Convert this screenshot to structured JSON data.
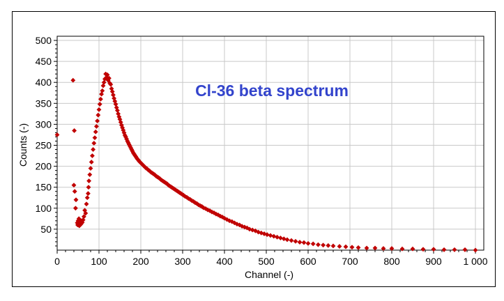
{
  "chart_data": {
    "type": "scatter",
    "title": "Cl-36 beta spectrum",
    "xlabel": "Channel (-)",
    "ylabel": "Counts (-)",
    "xlim": [
      0,
      1020
    ],
    "ylim": [
      0,
      510
    ],
    "xticks": [
      0,
      100,
      200,
      300,
      400,
      500,
      600,
      700,
      800,
      900,
      1000
    ],
    "xtick_labels": [
      "0",
      "100",
      "200",
      "300",
      "400",
      "500",
      "600",
      "700",
      "800",
      "900",
      "1 000"
    ],
    "yticks": [
      50,
      100,
      150,
      200,
      250,
      300,
      350,
      400,
      450,
      500
    ],
    "ytick_labels": [
      "50",
      "100",
      "150",
      "200",
      "250",
      "300",
      "350",
      "400",
      "450",
      "500"
    ],
    "grid": true,
    "marker": "diamond",
    "colors": {
      "marker": "#c00000",
      "title": "#3344cc",
      "grid": "#c8c8c8"
    },
    "series": [
      {
        "points": [
          [
            0,
            275
          ],
          [
            38,
            405
          ],
          [
            40,
            155
          ],
          [
            41,
            285
          ],
          [
            42,
            140
          ],
          [
            44,
            100
          ],
          [
            45,
            120
          ],
          [
            48,
            65
          ],
          [
            49,
            60
          ],
          [
            50,
            70
          ],
          [
            51,
            62
          ],
          [
            52,
            75
          ],
          [
            53,
            58
          ],
          [
            54,
            65
          ],
          [
            55,
            60
          ],
          [
            56,
            68
          ],
          [
            57,
            62
          ],
          [
            58,
            70
          ],
          [
            60,
            66
          ],
          [
            62,
            72
          ],
          [
            64,
            80
          ],
          [
            66,
            95
          ],
          [
            68,
            88
          ],
          [
            70,
            110
          ],
          [
            72,
            125
          ],
          [
            74,
            135
          ],
          [
            75,
            150
          ],
          [
            76,
            165
          ],
          [
            78,
            180
          ],
          [
            80,
            195
          ],
          [
            82,
            210
          ],
          [
            84,
            225
          ],
          [
            86,
            240
          ],
          [
            88,
            255
          ],
          [
            90,
            268
          ],
          [
            92,
            282
          ],
          [
            94,
            295
          ],
          [
            96,
            308
          ],
          [
            98,
            322
          ],
          [
            100,
            335
          ],
          [
            102,
            348
          ],
          [
            104,
            360
          ],
          [
            106,
            372
          ],
          [
            108,
            380
          ],
          [
            110,
            392
          ],
          [
            112,
            400
          ],
          [
            114,
            408
          ],
          [
            116,
            420
          ],
          [
            118,
            412
          ],
          [
            120,
            418
          ],
          [
            122,
            405
          ],
          [
            124,
            410
          ],
          [
            126,
            398
          ],
          [
            128,
            395
          ],
          [
            130,
            385
          ],
          [
            132,
            378
          ],
          [
            134,
            370
          ],
          [
            136,
            362
          ],
          [
            138,
            355
          ],
          [
            140,
            348
          ],
          [
            142,
            340
          ],
          [
            144,
            333
          ],
          [
            146,
            325
          ],
          [
            148,
            318
          ],
          [
            150,
            312
          ],
          [
            152,
            305
          ],
          [
            154,
            298
          ],
          [
            156,
            292
          ],
          [
            158,
            286
          ],
          [
            160,
            280
          ],
          [
            162,
            274
          ],
          [
            164,
            270
          ],
          [
            166,
            265
          ],
          [
            168,
            260
          ],
          [
            170,
            256
          ],
          [
            172,
            252
          ],
          [
            174,
            248
          ],
          [
            176,
            244
          ],
          [
            178,
            240
          ],
          [
            180,
            236
          ],
          [
            182,
            232
          ],
          [
            184,
            229
          ],
          [
            186,
            226
          ],
          [
            188,
            223
          ],
          [
            190,
            220
          ],
          [
            192,
            217
          ],
          [
            194,
            215
          ],
          [
            196,
            212
          ],
          [
            198,
            210
          ],
          [
            200,
            208
          ],
          [
            203,
            205
          ],
          [
            206,
            202
          ],
          [
            209,
            199
          ],
          [
            212,
            196
          ],
          [
            215,
            194
          ],
          [
            218,
            191
          ],
          [
            221,
            189
          ],
          [
            224,
            186
          ],
          [
            227,
            184
          ],
          [
            230,
            182
          ],
          [
            233,
            180
          ],
          [
            236,
            177
          ],
          [
            239,
            175
          ],
          [
            242,
            173
          ],
          [
            245,
            171
          ],
          [
            248,
            168
          ],
          [
            251,
            166
          ],
          [
            254,
            164
          ],
          [
            257,
            162
          ],
          [
            260,
            160
          ],
          [
            263,
            158
          ],
          [
            266,
            155
          ],
          [
            269,
            153
          ],
          [
            272,
            151
          ],
          [
            275,
            149
          ],
          [
            278,
            147
          ],
          [
            281,
            145
          ],
          [
            284,
            143
          ],
          [
            287,
            141
          ],
          [
            290,
            139
          ],
          [
            293,
            137
          ],
          [
            296,
            135
          ],
          [
            299,
            133
          ],
          [
            302,
            131
          ],
          [
            306,
            128
          ],
          [
            310,
            126
          ],
          [
            314,
            123
          ],
          [
            318,
            121
          ],
          [
            322,
            118
          ],
          [
            326,
            116
          ],
          [
            330,
            113
          ],
          [
            334,
            111
          ],
          [
            338,
            108
          ],
          [
            342,
            106
          ],
          [
            346,
            104
          ],
          [
            350,
            101
          ],
          [
            355,
            99
          ],
          [
            360,
            96
          ],
          [
            365,
            94
          ],
          [
            370,
            91
          ],
          [
            375,
            89
          ],
          [
            380,
            86
          ],
          [
            385,
            84
          ],
          [
            390,
            81
          ],
          [
            395,
            79
          ],
          [
            400,
            76
          ],
          [
            406,
            73
          ],
          [
            412,
            70
          ],
          [
            418,
            68
          ],
          [
            424,
            65
          ],
          [
            430,
            62
          ],
          [
            436,
            60
          ],
          [
            442,
            57
          ],
          [
            448,
            55
          ],
          [
            454,
            53
          ],
          [
            460,
            50
          ],
          [
            467,
            48
          ],
          [
            474,
            46
          ],
          [
            481,
            43
          ],
          [
            488,
            41
          ],
          [
            495,
            39
          ],
          [
            502,
            37
          ],
          [
            510,
            35
          ],
          [
            518,
            33
          ],
          [
            526,
            31
          ],
          [
            534,
            29
          ],
          [
            542,
            27
          ],
          [
            550,
            25
          ],
          [
            560,
            23
          ],
          [
            570,
            21
          ],
          [
            580,
            19
          ],
          [
            590,
            18
          ],
          [
            600,
            16
          ],
          [
            612,
            15
          ],
          [
            624,
            13
          ],
          [
            636,
            12
          ],
          [
            648,
            11
          ],
          [
            660,
            10
          ],
          [
            675,
            9
          ],
          [
            690,
            8
          ],
          [
            705,
            7
          ],
          [
            720,
            6
          ],
          [
            740,
            5
          ],
          [
            760,
            5
          ],
          [
            780,
            4
          ],
          [
            800,
            4
          ],
          [
            825,
            3
          ],
          [
            850,
            3
          ],
          [
            875,
            2
          ],
          [
            900,
            2
          ],
          [
            925,
            1
          ],
          [
            950,
            1
          ],
          [
            975,
            1
          ],
          [
            1000,
            0
          ]
        ]
      }
    ]
  }
}
